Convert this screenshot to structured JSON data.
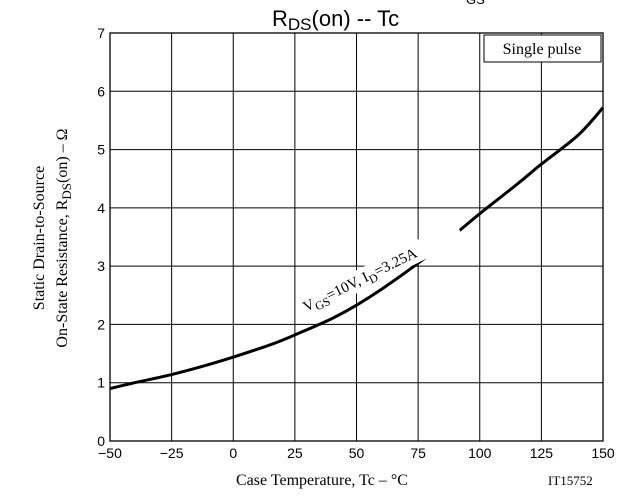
{
  "chart_data": {
    "type": "line",
    "title_main": "R",
    "title_sub": "DS",
    "title_rest": "(on)  --  Tc",
    "title_cut_sub": "GS",
    "ylabel_line1": "Static Drain-to-Source",
    "ylabel_line2_a": "On-State Resistance, R",
    "ylabel_line2_sub": "DS",
    "ylabel_line2_b": "(on)  –  Ω",
    "xlabel": "Case Temperature, Tc  –  °C",
    "figure_id": "IT15752",
    "annotation_box": "Single pulse",
    "curve_label": {
      "v": "V",
      "v_sub": "GS",
      "mid": "=10V, I",
      "i_sub": "D",
      "end": "=3.25A"
    },
    "xlim": [
      -50,
      150
    ],
    "ylim": [
      0,
      7
    ],
    "x_ticks": [
      -50,
      -25,
      0,
      25,
      50,
      75,
      100,
      125,
      150
    ],
    "x_tick_labels": [
      "−50",
      "−25",
      "0",
      "25",
      "50",
      "75",
      "100",
      "125",
      "150"
    ],
    "y_ticks": [
      0,
      1,
      2,
      3,
      4,
      5,
      6,
      7
    ],
    "y_tick_labels": [
      "0",
      "1",
      "2",
      "3",
      "4",
      "5",
      "6",
      "7"
    ],
    "grid": true,
    "series": [
      {
        "x": [
          -50,
          -40,
          -25,
          -10,
          0,
          15,
          25,
          40,
          50,
          60,
          75,
          90,
          100,
          115,
          125,
          140,
          150
        ],
        "y": [
          0.9,
          1.0,
          1.14,
          1.31,
          1.44,
          1.65,
          1.82,
          2.1,
          2.33,
          2.6,
          3.05,
          3.55,
          3.9,
          4.4,
          4.75,
          5.25,
          5.72
        ]
      }
    ]
  }
}
